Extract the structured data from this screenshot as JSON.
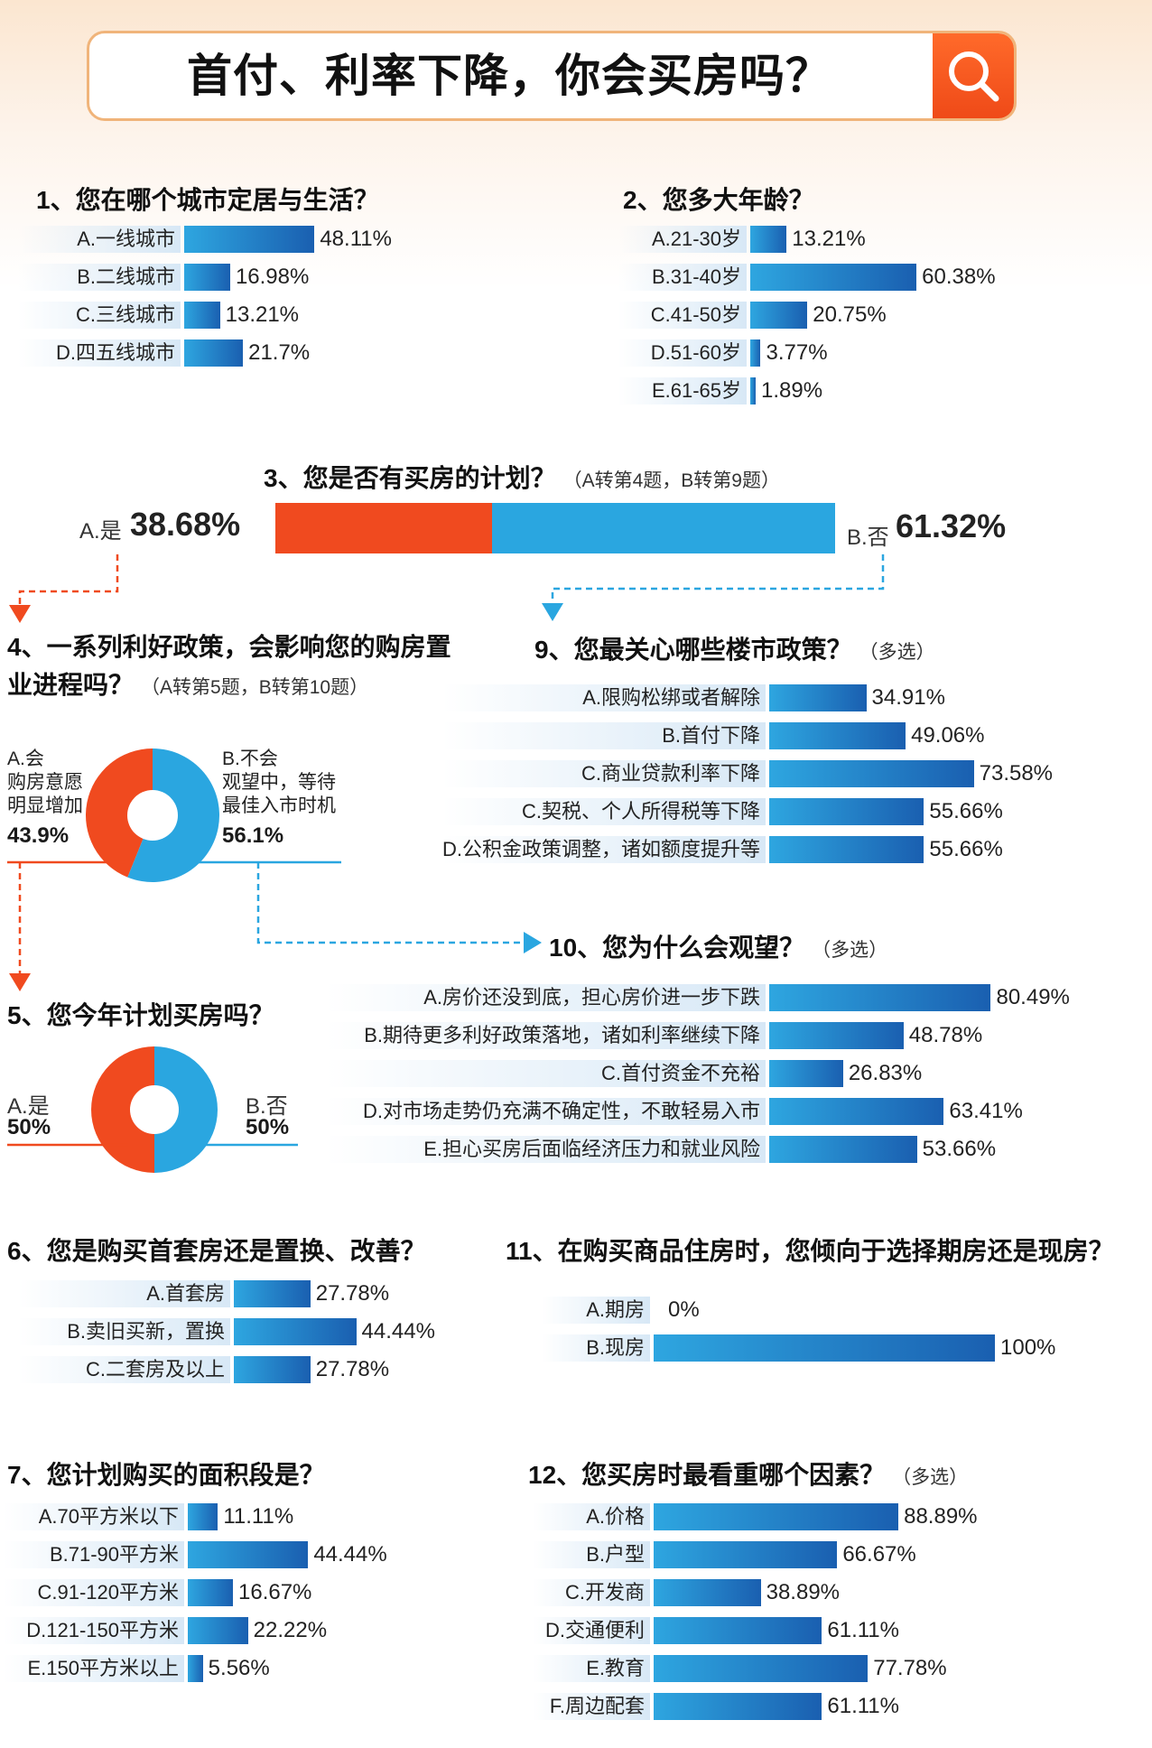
{
  "title": "首付、利率下降，你会买房吗？",
  "chart_data": [
    {
      "id": "q1",
      "type": "bar",
      "title": "1、您在哪个城市定居与生活？",
      "categories": [
        "A.一线城市",
        "B.二线城市",
        "C.三线城市",
        "D.四五线城市"
      ],
      "values": [
        48.11,
        16.98,
        13.21,
        21.7
      ],
      "labels": [
        "48.11%",
        "16.98%",
        "13.21%",
        "21.7%"
      ]
    },
    {
      "id": "q2",
      "type": "bar",
      "title": "2、您多大年龄？",
      "categories": [
        "A.21-30岁",
        "B.31-40岁",
        "C.41-50岁",
        "D.51-60岁",
        "E.61-65岁"
      ],
      "values": [
        13.21,
        60.38,
        20.75,
        3.77,
        1.89
      ],
      "labels": [
        "13.21%",
        "60.38%",
        "20.75%",
        "3.77%",
        "1.89%"
      ]
    },
    {
      "id": "q3",
      "type": "bar",
      "title": "3、您是否有买房的计划？",
      "note": "（A转第4题，B转第9题）",
      "categories": [
        "A.是",
        "B.否"
      ],
      "values": [
        38.68,
        61.32
      ],
      "labels": [
        "38.68%",
        "61.32%"
      ],
      "colors": [
        "#f04a1f",
        "#2aa6e0"
      ]
    },
    {
      "id": "q4",
      "type": "pie",
      "title": "4、一系列利好政策，会影响您的购房置业进程吗？",
      "note": "（A转第5题，B转第10题）",
      "categories": [
        "A.会 购房意愿明显增加",
        "B.不会 观望中，等待最佳入市时机"
      ],
      "values": [
        43.9,
        56.1
      ],
      "labels": [
        "43.9%",
        "56.1%"
      ],
      "colors": [
        "#f04a1f",
        "#2aa6e0"
      ]
    },
    {
      "id": "q5",
      "type": "pie",
      "title": "5、您今年计划买房吗？",
      "categories": [
        "A.是",
        "B.否"
      ],
      "values": [
        50,
        50
      ],
      "labels": [
        "50%",
        "50%"
      ],
      "colors": [
        "#f04a1f",
        "#2aa6e0"
      ]
    },
    {
      "id": "q9",
      "type": "bar",
      "title": "9、您最关心哪些楼市政策？",
      "note": "（多选）",
      "categories": [
        "A.限购松绑或者解除",
        "B.首付下降",
        "C.商业贷款利率下降",
        "C.契税、个人所得税等下降",
        "D.公积金政策调整，诸如额度提升等"
      ],
      "values": [
        34.91,
        49.06,
        73.58,
        55.66,
        55.66
      ],
      "labels": [
        "34.91%",
        "49.06%",
        "73.58%",
        "55.66%",
        "55.66%"
      ]
    },
    {
      "id": "q10",
      "type": "bar",
      "title": "10、您为什么会观望？",
      "note": "（多选）",
      "categories": [
        "A.房价还没到底，担心房价进一步下跌",
        "B.期待更多利好政策落地，诸如利率继续下降",
        "C.首付资金不充裕",
        "D.对市场走势仍充满不确定性，不敢轻易入市",
        "E.担心买房后面临经济压力和就业风险"
      ],
      "values": [
        80.49,
        48.78,
        26.83,
        63.41,
        53.66
      ],
      "labels": [
        "80.49%",
        "48.78%",
        "26.83%",
        "63.41%",
        "53.66%"
      ]
    },
    {
      "id": "q6",
      "type": "bar",
      "title": "6、您是购买首套房还是置换、改善？",
      "categories": [
        "A.首套房",
        "B.卖旧买新，置换",
        "C.二套房及以上"
      ],
      "values": [
        27.78,
        44.44,
        27.78
      ],
      "labels": [
        "27.78%",
        "44.44%",
        "27.78%"
      ]
    },
    {
      "id": "q11",
      "type": "bar",
      "title": "11、在购买商品住房时，您倾向于选择期房还是现房？",
      "categories": [
        "A.期房",
        "B.现房"
      ],
      "values": [
        0,
        100
      ],
      "labels": [
        "0%",
        "100%"
      ]
    },
    {
      "id": "q7",
      "type": "bar",
      "title": "7、您计划购买的面积段是？",
      "categories": [
        "A.70平方米以下",
        "B.71-90平方米",
        "C.91-120平方米",
        "D.121-150平方米",
        "E.150平方米以上"
      ],
      "values": [
        11.11,
        44.44,
        16.67,
        22.22,
        5.56
      ],
      "labels": [
        "11.11%",
        "44.44%",
        "16.67%",
        "22.22%",
        "5.56%"
      ]
    },
    {
      "id": "q12",
      "type": "bar",
      "title": "12、您买房时最看重哪个因素？",
      "note": "（多选）",
      "categories": [
        "A.价格",
        "B.户型",
        "C.开发商",
        "D.交通便利",
        "E.教育",
        "F.周边配套"
      ],
      "values": [
        88.89,
        66.67,
        38.89,
        61.11,
        77.78,
        61.11
      ],
      "labels": [
        "88.89%",
        "66.67%",
        "38.89%",
        "61.11%",
        "77.78%",
        "61.11%"
      ]
    }
  ]
}
